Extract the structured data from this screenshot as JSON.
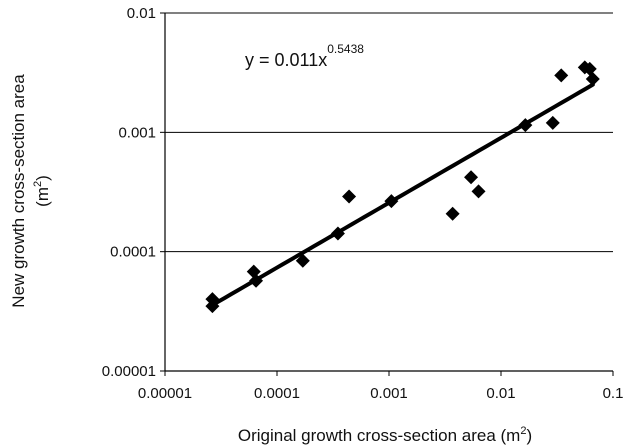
{
  "chart_data": {
    "type": "scatter",
    "title": "",
    "x_scale": "log",
    "y_scale": "log",
    "xlim": [
      1e-05,
      0.1
    ],
    "ylim": [
      1e-05,
      0.01
    ],
    "x_ticks": [
      "0.00001",
      "0.0001",
      "0.001",
      "0.01",
      "0.1"
    ],
    "y_ticks": [
      "0.00001",
      "0.0001",
      "0.001",
      "0.01"
    ],
    "xlabel": {
      "text": "Original growth cross-section area (m",
      "sup": "2",
      "close": ")"
    },
    "ylabel": {
      "line1": "New growth cross-section area",
      "line2_open": "(m",
      "sup": "2",
      "line2_close": ")"
    },
    "horizontal_gridlines": true,
    "legend": "none",
    "marker": "diamond",
    "marker_color": "#000000",
    "points": [
      {
        "x": 2.65e-05,
        "y": 4e-05
      },
      {
        "x": 2.65e-05,
        "y": 3.5e-05
      },
      {
        "x": 6.2e-05,
        "y": 6.8e-05
      },
      {
        "x": 6.5e-05,
        "y": 5.7e-05
      },
      {
        "x": 0.00017,
        "y": 8.4e-05
      },
      {
        "x": 0.00035,
        "y": 0.000142
      },
      {
        "x": 0.00044,
        "y": 0.00029
      },
      {
        "x": 0.00105,
        "y": 0.000265
      },
      {
        "x": 0.0037,
        "y": 0.000208
      },
      {
        "x": 0.0054,
        "y": 0.00042
      },
      {
        "x": 0.0063,
        "y": 0.00032
      },
      {
        "x": 0.0165,
        "y": 0.00115
      },
      {
        "x": 0.029,
        "y": 0.0012
      },
      {
        "x": 0.0345,
        "y": 0.003
      },
      {
        "x": 0.056,
        "y": 0.0035
      },
      {
        "x": 0.062,
        "y": 0.0034
      },
      {
        "x": 0.066,
        "y": 0.0028
      }
    ],
    "trendline": {
      "type": "power",
      "coefficient": 0.011,
      "exponent": 0.5438,
      "x_range": [
        2.65e-05,
        0.066
      ],
      "equation_base": "y = 0.011x",
      "equation_exponent": "0.5438",
      "color": "#000000"
    }
  }
}
